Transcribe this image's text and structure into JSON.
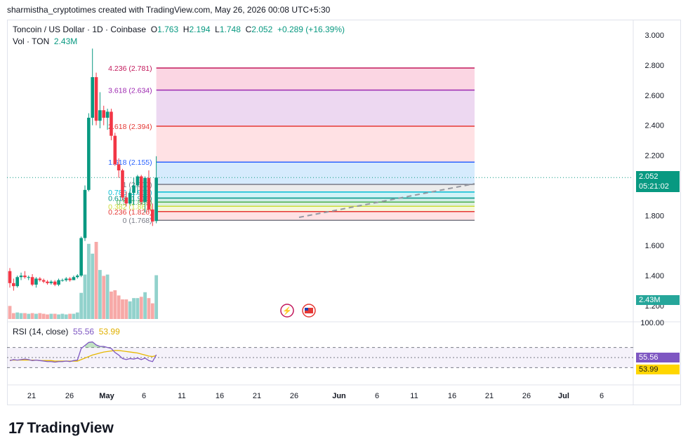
{
  "header": {
    "attribution": "sharmistha_cryptotimes created with TradingView.com, May 26, 2026 00:08 UTC+5:30"
  },
  "legend": {
    "symbol": "Toncoin / US Dollar · 1D · Coinbase",
    "open_label": "O",
    "open": "1.763",
    "high_label": "H",
    "high": "2.194",
    "low_label": "L",
    "low": "1.748",
    "close_label": "C",
    "close": "2.052",
    "change": "+0.289 (+16.39%)",
    "vol_label": "Vol · TON",
    "vol": "2.43M"
  },
  "rsi_legend": {
    "label": "RSI (14, close)",
    "rsi": "55.56",
    "ma": "53.99"
  },
  "price_tag": {
    "price": "2.052",
    "countdown": "05:21:02",
    "vol": "2.43M"
  },
  "rsi_tags": {
    "rsi": "55.56",
    "ma": "53.99"
  },
  "brand": {
    "logo": "17",
    "name": "TradingView"
  },
  "colors": {
    "up": "#089981",
    "down": "#f23645",
    "rsi": "#7e57c2",
    "rsi_ma": "#e6b800"
  },
  "chart_data": [
    {
      "type": "candlestick",
      "title": "Toncoin / US Dollar · 1D · Coinbase",
      "price_ticks": [
        "3.000",
        "2.800",
        "2.600",
        "2.400",
        "2.200",
        "2.000",
        "1.800",
        "1.600",
        "1.400",
        "1.200"
      ],
      "x_ticks": [
        "21",
        "26",
        "May",
        "6",
        "11",
        "16",
        "21",
        "26",
        "Jun",
        "6",
        "11",
        "16",
        "21",
        "26",
        "Jul",
        "6"
      ],
      "ylim": [
        1.2,
        3.0
      ],
      "candles": [
        {
          "o": 1.43,
          "h": 1.45,
          "l": 1.32,
          "c": 1.35
        },
        {
          "o": 1.35,
          "h": 1.38,
          "l": 1.3,
          "c": 1.33
        },
        {
          "o": 1.33,
          "h": 1.4,
          "l": 1.32,
          "c": 1.39
        },
        {
          "o": 1.39,
          "h": 1.42,
          "l": 1.37,
          "c": 1.4
        },
        {
          "o": 1.4,
          "h": 1.43,
          "l": 1.38,
          "c": 1.39
        },
        {
          "o": 1.39,
          "h": 1.4,
          "l": 1.37,
          "c": 1.39
        },
        {
          "o": 1.39,
          "h": 1.41,
          "l": 1.33,
          "c": 1.34
        },
        {
          "o": 1.34,
          "h": 1.39,
          "l": 1.32,
          "c": 1.38
        },
        {
          "o": 1.38,
          "h": 1.39,
          "l": 1.36,
          "c": 1.37
        },
        {
          "o": 1.37,
          "h": 1.38,
          "l": 1.35,
          "c": 1.36
        },
        {
          "o": 1.36,
          "h": 1.37,
          "l": 1.34,
          "c": 1.35
        },
        {
          "o": 1.35,
          "h": 1.37,
          "l": 1.34,
          "c": 1.36
        },
        {
          "o": 1.36,
          "h": 1.37,
          "l": 1.33,
          "c": 1.34
        },
        {
          "o": 1.34,
          "h": 1.38,
          "l": 1.33,
          "c": 1.37
        },
        {
          "o": 1.37,
          "h": 1.38,
          "l": 1.36,
          "c": 1.37
        },
        {
          "o": 1.37,
          "h": 1.39,
          "l": 1.36,
          "c": 1.38
        },
        {
          "o": 1.38,
          "h": 1.39,
          "l": 1.36,
          "c": 1.37
        },
        {
          "o": 1.37,
          "h": 1.4,
          "l": 1.37,
          "c": 1.39
        },
        {
          "o": 1.39,
          "h": 1.41,
          "l": 1.38,
          "c": 1.4
        },
        {
          "o": 1.4,
          "h": 1.66,
          "l": 1.39,
          "c": 1.65
        },
        {
          "o": 1.65,
          "h": 2.0,
          "l": 1.63,
          "c": 1.97
        },
        {
          "o": 1.97,
          "h": 2.48,
          "l": 1.96,
          "c": 2.45
        },
        {
          "o": 2.45,
          "h": 2.91,
          "l": 2.4,
          "c": 2.72
        },
        {
          "o": 2.72,
          "h": 2.75,
          "l": 2.4,
          "c": 2.43
        },
        {
          "o": 2.43,
          "h": 2.62,
          "l": 2.38,
          "c": 2.5
        },
        {
          "o": 2.5,
          "h": 2.53,
          "l": 2.4,
          "c": 2.45
        },
        {
          "o": 2.45,
          "h": 2.51,
          "l": 2.37,
          "c": 2.49
        },
        {
          "o": 2.49,
          "h": 2.51,
          "l": 2.3,
          "c": 2.33
        },
        {
          "o": 2.33,
          "h": 2.35,
          "l": 2.13,
          "c": 2.14
        },
        {
          "o": 2.14,
          "h": 2.18,
          "l": 2.05,
          "c": 2.1
        },
        {
          "o": 2.1,
          "h": 2.11,
          "l": 1.9,
          "c": 1.92
        },
        {
          "o": 1.92,
          "h": 1.96,
          "l": 1.86,
          "c": 1.88
        },
        {
          "o": 1.88,
          "h": 1.98,
          "l": 1.87,
          "c": 1.95
        },
        {
          "o": 1.95,
          "h": 2.05,
          "l": 1.87,
          "c": 2.0
        },
        {
          "o": 2.0,
          "h": 2.07,
          "l": 1.94,
          "c": 2.06
        },
        {
          "o": 2.06,
          "h": 2.07,
          "l": 1.87,
          "c": 1.89
        },
        {
          "o": 1.89,
          "h": 2.06,
          "l": 1.82,
          "c": 2.05
        },
        {
          "o": 2.05,
          "h": 2.1,
          "l": 1.82,
          "c": 1.84
        },
        {
          "o": 1.84,
          "h": 1.88,
          "l": 1.73,
          "c": 1.76
        },
        {
          "o": 1.763,
          "h": 2.194,
          "l": 1.748,
          "c": 2.052
        }
      ],
      "volume": [
        0.2,
        0.09,
        0.1,
        0.09,
        0.09,
        0.08,
        0.09,
        0.08,
        0.09,
        0.08,
        0.07,
        0.08,
        0.08,
        0.07,
        0.08,
        0.07,
        0.08,
        0.08,
        0.1,
        0.4,
        0.68,
        1.15,
        1.0,
        1.18,
        0.75,
        0.66,
        0.68,
        0.42,
        0.44,
        0.36,
        0.3,
        0.3,
        0.27,
        0.32,
        0.32,
        0.34,
        0.41,
        0.32,
        0.24,
        0.67
      ],
      "fibonacci": [
        {
          "level": "4.236",
          "price": "2.781",
          "color": "#c2185b"
        },
        {
          "level": "3.618",
          "price": "2.634",
          "color": "#9c27b0"
        },
        {
          "level": "2.618",
          "price": "2.394",
          "color": "#e53935"
        },
        {
          "level": "1.618",
          "price": "2.155",
          "color": "#2962ff"
        },
        {
          "level": "1",
          "price": "2.007",
          "color": "#787b86"
        },
        {
          "level": "0.786",
          "price": "1.956",
          "color": "#00bcd4"
        },
        {
          "level": "0.618",
          "price": "1.916",
          "color": "#009688"
        },
        {
          "level": "0.5",
          "price": "1.889",
          "color": "#4caf50"
        },
        {
          "level": "0.382",
          "price": "1.861",
          "color": "#cddc39"
        },
        {
          "level": "0.236",
          "price": "1.826",
          "color": "#e53935"
        },
        {
          "level": "0",
          "price": "1.768",
          "color": "#787b86"
        }
      ]
    },
    {
      "type": "line",
      "title": "RSI (14, close)",
      "ylim": [
        0,
        100
      ],
      "top_tick": "100.00",
      "series": [
        {
          "name": "RSI",
          "values": [
            44,
            46,
            45,
            46,
            47,
            46,
            44,
            45,
            44,
            43,
            42,
            42,
            41,
            42,
            42,
            43,
            42,
            44,
            45,
            68,
            74,
            80,
            81,
            75,
            72,
            72,
            70,
            68,
            60,
            55,
            48,
            46,
            48,
            47,
            49,
            46,
            49,
            44,
            42,
            55.56
          ]
        },
        {
          "name": "MA",
          "values": [
            45,
            45,
            45,
            45,
            45,
            45,
            45,
            45,
            44,
            44,
            44,
            44,
            43,
            43,
            43,
            43,
            43,
            43,
            43,
            46,
            49,
            52,
            55,
            57,
            59,
            61,
            62,
            63,
            64,
            64,
            63,
            62,
            61,
            60,
            59,
            57,
            55,
            53,
            52,
            53.99
          ]
        }
      ]
    }
  ]
}
